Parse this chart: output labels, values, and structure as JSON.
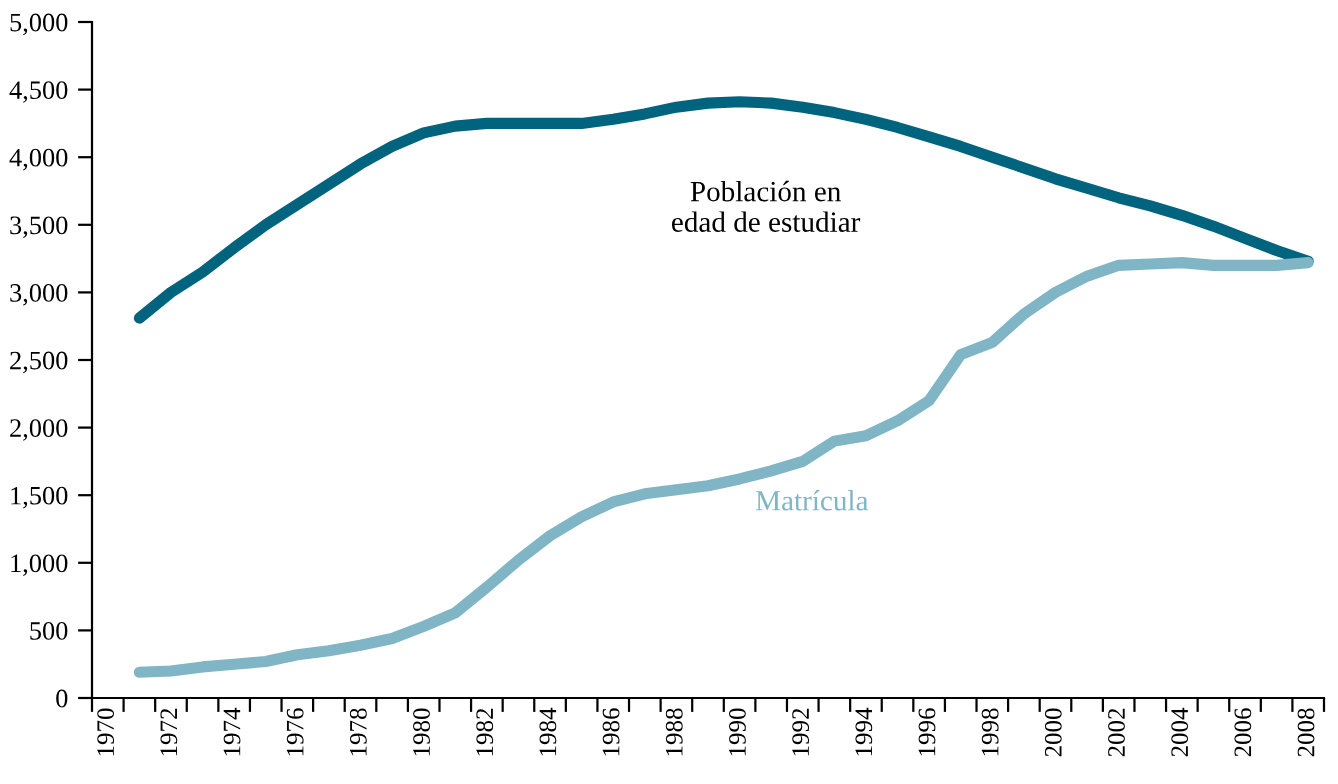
{
  "chart_data": {
    "type": "line",
    "categories": [
      "1970",
      null,
      "1972",
      null,
      "1974",
      null,
      "1976",
      null,
      "1978",
      null,
      "1980",
      null,
      "1982",
      null,
      "1984",
      null,
      "1986",
      null,
      "1988",
      null,
      "1990",
      null,
      "1992",
      null,
      "1994",
      null,
      "1996",
      null,
      "1998",
      null,
      "2000",
      null,
      "2002",
      null,
      "2004",
      null,
      "2006",
      null,
      "2008"
    ],
    "series": [
      {
        "name": "Población en\nedad de estudiar",
        "color": "#00647f",
        "values": [
          null,
          2810,
          3000,
          3150,
          3330,
          3500,
          3650,
          3800,
          3950,
          4080,
          4180,
          4230,
          4250,
          4250,
          4250,
          4250,
          4280,
          4320,
          4370,
          4400,
          4410,
          4400,
          4370,
          4330,
          4280,
          4220,
          4150,
          4080,
          4000,
          3920,
          3840,
          3770,
          3700,
          3640,
          3570,
          3490,
          3400,
          3310,
          3230
        ]
      },
      {
        "name": "Matrícula",
        "color": "#7fb5c5",
        "values": [
          null,
          190,
          200,
          230,
          250,
          270,
          320,
          350,
          390,
          440,
          530,
          630,
          820,
          1020,
          1200,
          1340,
          1450,
          1510,
          1540,
          1570,
          1620,
          1680,
          1750,
          1900,
          1940,
          2050,
          2200,
          2540,
          2630,
          2840,
          3000,
          3120,
          3200,
          3210,
          3220,
          3200,
          3200,
          3200,
          3220
        ]
      }
    ],
    "ylim": [
      0,
      5000
    ],
    "yticks": [
      0,
      500,
      {
        "value": 1000,
        "label": "1,000"
      },
      {
        "value": 1500,
        "label": "1,500"
      },
      {
        "value": 2000,
        "label": "2,000"
      },
      {
        "value": 2500,
        "label": "2,500"
      },
      {
        "value": 3000,
        "label": "3,000"
      },
      {
        "value": 3500,
        "label": "3,500"
      },
      {
        "value": 4000,
        "label": "4,000"
      },
      {
        "value": 4500,
        "label": "4,500"
      },
      {
        "value": 5000,
        "label": "5,000"
      }
    ],
    "grid": false,
    "legend": false,
    "marker": "none",
    "line_style": "solid"
  }
}
